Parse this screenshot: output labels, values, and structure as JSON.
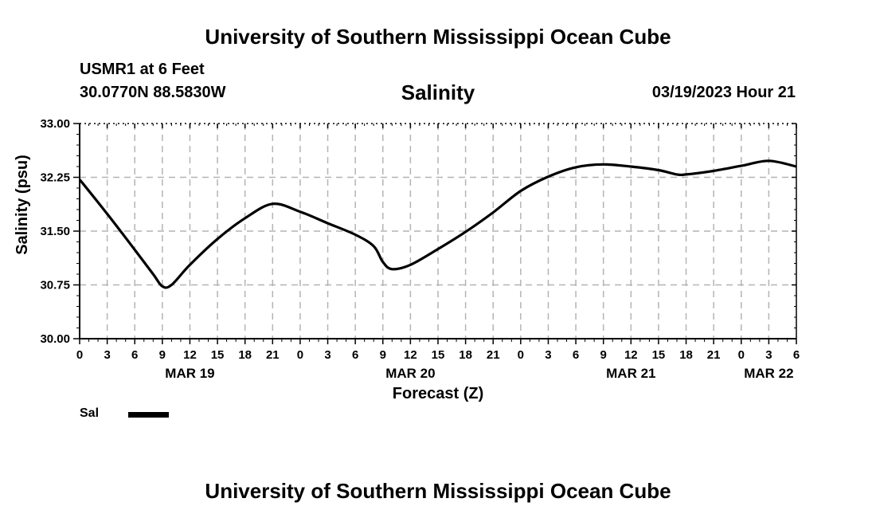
{
  "header": {
    "title": "University of Southern Mississippi Ocean Cube",
    "station": "USMR1 at 6 Feet",
    "coordinates": "30.0770N  88.5830W",
    "datetime": "03/19/2023 Hour 21"
  },
  "footer": {
    "title": "University of Southern Mississippi Ocean Cube"
  },
  "legend": {
    "label": "Sal"
  },
  "chart_data": {
    "type": "line",
    "title": "Salinity",
    "xlabel": "Forecast (Z)",
    "ylabel": "Salinity (psu)",
    "ylim": [
      30.0,
      33.0
    ],
    "y_ticks": [
      "30.00",
      "30.75",
      "31.50",
      "32.25",
      "33.00"
    ],
    "xlim_hours": [
      0,
      78
    ],
    "x_tick_labels": [
      "0",
      "3",
      "6",
      "9",
      "12",
      "15",
      "18",
      "21",
      "0",
      "3",
      "6",
      "9",
      "12",
      "15",
      "18",
      "21",
      "0",
      "3",
      "6",
      "9",
      "12",
      "15",
      "18",
      "21",
      "0",
      "3",
      "6"
    ],
    "date_labels": [
      {
        "label": "MAR 19",
        "hour": 12
      },
      {
        "label": "MAR 20",
        "hour": 36
      },
      {
        "label": "MAR 21",
        "hour": 60
      },
      {
        "label": "MAR 22",
        "hour": 75
      }
    ],
    "grid": true,
    "series": [
      {
        "name": "Sal",
        "color": "#000000",
        "hours": [
          0,
          3,
          6,
          8,
          9,
          10,
          12,
          15,
          18,
          21,
          24,
          27,
          30,
          32,
          33,
          34,
          36,
          39,
          42,
          45,
          48,
          51,
          54,
          57,
          60,
          63,
          65,
          66,
          69,
          72,
          75,
          78
        ],
        "values": [
          32.22,
          31.74,
          31.24,
          30.9,
          30.73,
          30.75,
          31.03,
          31.39,
          31.68,
          31.88,
          31.77,
          31.61,
          31.45,
          31.29,
          31.07,
          30.97,
          31.03,
          31.25,
          31.49,
          31.76,
          32.06,
          32.26,
          32.39,
          32.43,
          32.4,
          32.35,
          32.29,
          32.29,
          32.34,
          32.41,
          32.48,
          32.4
        ]
      }
    ]
  }
}
